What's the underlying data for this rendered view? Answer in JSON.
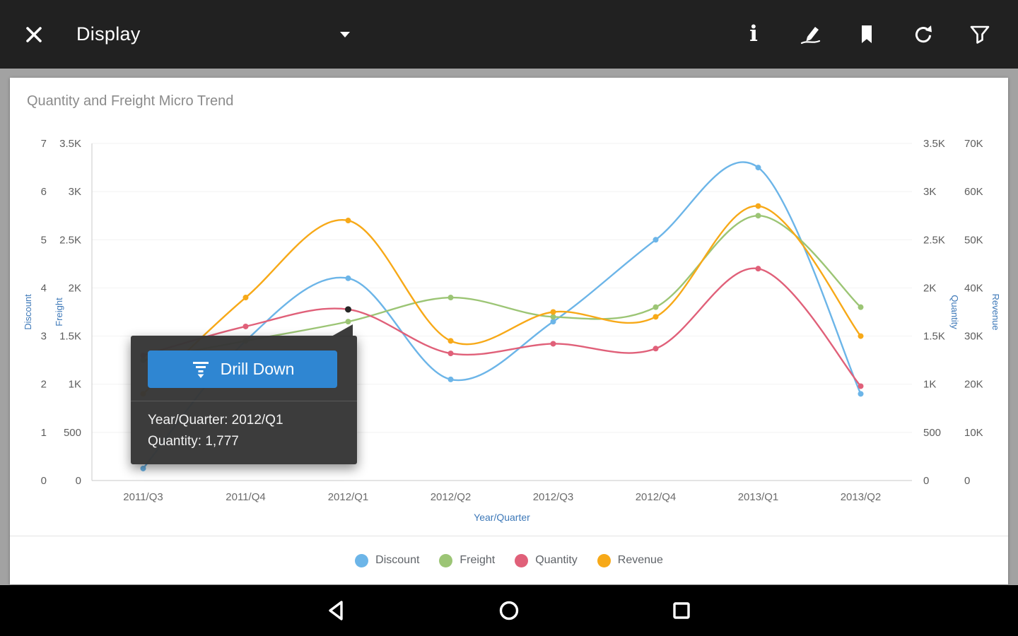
{
  "app_bar": {
    "title": "Display",
    "icons": [
      "close-icon",
      "chevron-down-icon",
      "info-icon",
      "annotate-icon",
      "bookmark-icon",
      "refresh-icon",
      "filter-icon"
    ]
  },
  "card": {
    "title": "Quantity and Freight Micro Trend"
  },
  "chart_data": {
    "type": "line",
    "categories": [
      "2011/Q3",
      "2011/Q4",
      "2012/Q1",
      "2012/Q2",
      "2012/Q3",
      "2012/Q4",
      "2013/Q1",
      "2013/Q2"
    ],
    "xlabel": "Year/Quarter",
    "series": [
      {
        "name": "Discount",
        "axis": "discount",
        "color": "#6cb5e8",
        "values": [
          0.25,
          2.9,
          4.2,
          2.1,
          3.3,
          5.0,
          6.5,
          1.8
        ]
      },
      {
        "name": "Freight",
        "axis": "freight",
        "color": "#9cc575",
        "values": [
          1250,
          1450,
          1650,
          1900,
          1700,
          1800,
          2750,
          1800
        ]
      },
      {
        "name": "Quantity",
        "axis": "quantity",
        "color": "#e06079",
        "values": [
          1300,
          1600,
          1777,
          1320,
          1420,
          1370,
          2200,
          980
        ]
      },
      {
        "name": "Revenue",
        "axis": "revenue",
        "color": "#f7a918",
        "values": [
          18000,
          38000,
          54000,
          29000,
          35000,
          34000,
          57000,
          30000
        ]
      }
    ],
    "axes": {
      "discount": {
        "title": "Discount",
        "max": 7,
        "ticks": [
          "0",
          "1",
          "2",
          "3",
          "4",
          "5",
          "6",
          "7"
        ]
      },
      "freight": {
        "title": "Freight",
        "max": 3500,
        "ticks": [
          "0",
          "500",
          "1K",
          "1.5K",
          "2K",
          "2.5K",
          "3K",
          "3.5K"
        ]
      },
      "quantity": {
        "title": "Quantity",
        "max": 3500,
        "ticks": [
          "0",
          "500",
          "1K",
          "1.5K",
          "2K",
          "2.5K",
          "3K",
          "3.5K"
        ]
      },
      "revenue": {
        "title": "Revenue",
        "max": 70000,
        "ticks": [
          "0",
          "10K",
          "20K",
          "30K",
          "40K",
          "50K",
          "60K",
          "70K"
        ]
      }
    },
    "selected_point": {
      "series": "Quantity",
      "category": "2012/Q1",
      "value": "1,777"
    },
    "legend_position": "bottom",
    "grid": false
  },
  "tooltip": {
    "button_label": "Drill Down",
    "lines": [
      "Year/Quarter: 2012/Q1",
      "Quantity: 1,777"
    ]
  },
  "colors": {
    "accent_blue": "#3d78b8",
    "button_blue": "#2f86d2",
    "tooltip_bg": "#363636",
    "tick_gray": "#5d5d5d"
  }
}
